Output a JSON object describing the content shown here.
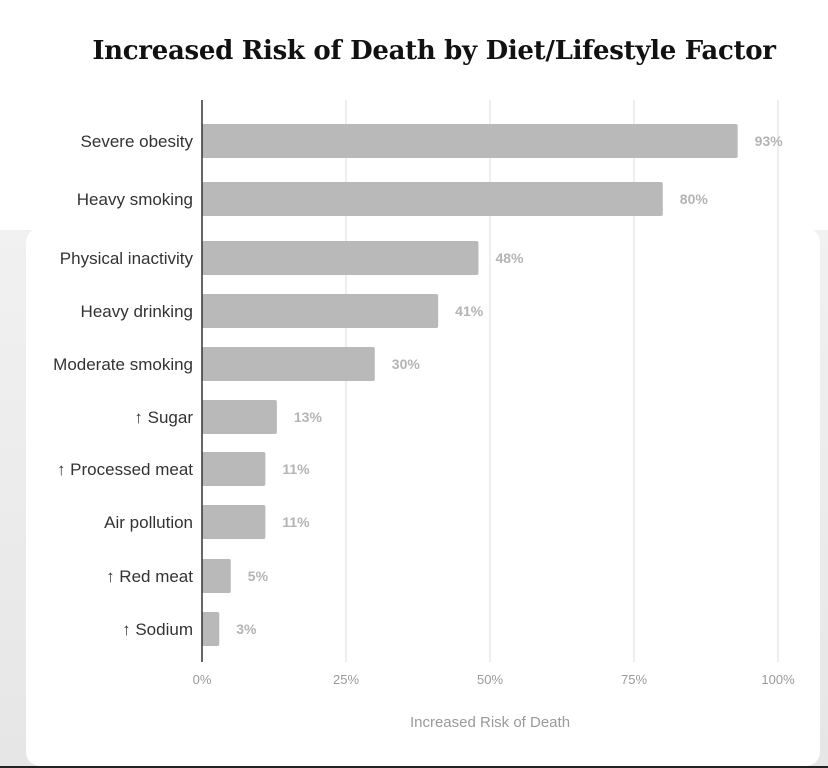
{
  "chart_data": {
    "type": "bar",
    "orientation": "horizontal",
    "title": "Increased Risk of Death by Diet/Lifestyle Factor",
    "categories": [
      "Severe obesity",
      "Heavy smoking",
      "Physical inactivity",
      "Heavy drinking",
      "Moderate smoking",
      "↑ Sugar",
      "↑ Processed meat",
      "Air pollution",
      "↑ Red meat",
      "↑ Sodium"
    ],
    "values": [
      93,
      80,
      48,
      41,
      30,
      13,
      11,
      11,
      5,
      3
    ],
    "value_labels": [
      "93%",
      "80%",
      "48%",
      "41%",
      "30%",
      "13%",
      "11%",
      "11%",
      "5%",
      "3%"
    ],
    "xlabel": "Increased Risk of Death",
    "ylabel": "",
    "xlim": [
      0,
      100
    ],
    "xticks": [
      0,
      25,
      50,
      75,
      100
    ],
    "xtick_labels": [
      "0%",
      "25%",
      "50%",
      "75%",
      "100%"
    ],
    "grid": true,
    "bar_color": "#b9b9b9",
    "legend": "none"
  }
}
